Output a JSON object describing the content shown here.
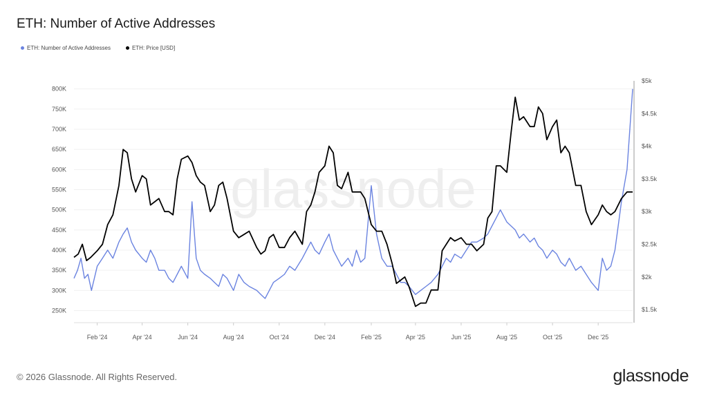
{
  "chart_data": {
    "type": "line",
    "title": "ETH: Number of Active Addresses",
    "watermark": "glassnode",
    "legend_position": "top-left",
    "grid": true,
    "x_tick_labels": [
      "Feb '24",
      "Apr '24",
      "Jun '24",
      "Aug '24",
      "Oct '24",
      "Dec '24",
      "Feb '25",
      "Apr '25",
      "Jun '25",
      "Aug '25",
      "Oct '25",
      "Dec '25"
    ],
    "x_tick_dates": [
      "2024-02-01",
      "2024-04-01",
      "2024-06-01",
      "2024-08-01",
      "2024-10-01",
      "2024-12-01",
      "2025-02-01",
      "2025-04-01",
      "2025-06-01",
      "2025-08-01",
      "2025-10-01",
      "2025-12-01"
    ],
    "xlim": [
      "2024-01-01",
      "2026-01-16"
    ],
    "left_axis": {
      "ticks": [
        250000,
        300000,
        350000,
        400000,
        450000,
        500000,
        550000,
        600000,
        650000,
        700000,
        750000,
        800000
      ],
      "tick_labels": [
        "250K",
        "300K",
        "350K",
        "400K",
        "450K",
        "500K",
        "550K",
        "600K",
        "650K",
        "700K",
        "750K",
        "800K"
      ],
      "ylim": [
        220000,
        820000
      ]
    },
    "right_axis": {
      "ticks": [
        1500,
        2000,
        2500,
        3000,
        3500,
        4000,
        4500,
        5000
      ],
      "tick_labels": [
        "$1.5k",
        "$2k",
        "$2.5k",
        "$3k",
        "$3.5k",
        "$4k",
        "$4.5k",
        "$5k"
      ],
      "ylim": [
        1300,
        5000
      ]
    },
    "series": [
      {
        "name": "ETH: Number of Active Addresses",
        "color": "#6a83e0",
        "axis": "left",
        "monthly": [
          [
            "2024-01",
            [
              330,
              350,
              380,
              330,
              340,
              300
            ]
          ],
          [
            "2024-02",
            [
              360,
              380,
              400,
              380
            ]
          ],
          [
            "2024-03",
            [
              420,
              440,
              455,
              420,
              400
            ]
          ],
          [
            "2024-04",
            [
              380,
              370,
              400,
              380,
              350
            ]
          ],
          [
            "2024-05",
            [
              350,
              330,
              320,
              340,
              360
            ]
          ],
          [
            "2024-06",
            [
              330,
              520,
              380,
              350,
              340
            ]
          ],
          [
            "2024-07",
            [
              330,
              320,
              310,
              340,
              330
            ]
          ],
          [
            "2024-08",
            [
              300,
              340,
              320,
              310
            ]
          ],
          [
            "2024-09",
            [
              300,
              290,
              280,
              300,
              320
            ]
          ],
          [
            "2024-10",
            [
              330,
              340,
              360,
              350
            ]
          ],
          [
            "2024-11",
            [
              380,
              400,
              420,
              400,
              390
            ]
          ],
          [
            "2024-12",
            [
              420,
              440,
              400,
              380,
              360
            ]
          ],
          [
            "2025-01",
            [
              380,
              360,
              400,
              370,
              380
            ]
          ],
          [
            "2025-02",
            [
              560,
              440,
              380,
              360
            ]
          ],
          [
            "2025-03",
            [
              360,
              340,
              320,
              320,
              310
            ]
          ],
          [
            "2025-04",
            [
              290,
              300,
              310,
              320
            ]
          ],
          [
            "2025-05",
            [
              340,
              360,
              380,
              370,
              390
            ]
          ],
          [
            "2025-06",
            [
              380,
              400,
              420,
              420
            ]
          ],
          [
            "2025-07",
            [
              430,
              440,
              460,
              480,
              500
            ]
          ],
          [
            "2025-08",
            [
              470,
              460,
              450,
              430,
              440
            ]
          ],
          [
            "2025-09",
            [
              420,
              430,
              410,
              400,
              380
            ]
          ],
          [
            "2025-10",
            [
              400,
              390,
              370,
              360,
              380
            ]
          ],
          [
            "2025-11",
            [
              350,
              360,
              340,
              320
            ]
          ],
          [
            "2025-12",
            [
              300,
              380,
              350,
              360,
              400
            ]
          ],
          [
            "2026-01",
            [
              520,
              600,
              800
            ]
          ]
        ]
      },
      {
        "name": "ETH: Price [USD]",
        "color": "#000000",
        "axis": "right",
        "monthly": [
          [
            "2024-01",
            [
              2300,
              2350,
              2500,
              2250,
              2300
            ]
          ],
          [
            "2024-02",
            [
              2400,
              2500,
              2800,
              2950
            ]
          ],
          [
            "2024-03",
            [
              3400,
              3950,
              3900,
              3500,
              3300
            ]
          ],
          [
            "2024-04",
            [
              3550,
              3500,
              3100,
              3150,
              3200
            ]
          ],
          [
            "2024-05",
            [
              3000,
              3000,
              2950,
              3500,
              3800
            ]
          ],
          [
            "2024-06",
            [
              3850,
              3750,
              3550,
              3450,
              3400
            ]
          ],
          [
            "2024-07",
            [
              3000,
              3100,
              3400,
              3450,
              3200
            ]
          ],
          [
            "2024-08",
            [
              2700,
              2600,
              2650,
              2700
            ]
          ],
          [
            "2024-09",
            [
              2450,
              2350,
              2400,
              2600,
              2650
            ]
          ],
          [
            "2024-10",
            [
              2450,
              2450,
              2600,
              2700
            ]
          ],
          [
            "2024-11",
            [
              2500,
              3000,
              3100,
              3300,
              3600
            ]
          ],
          [
            "2024-12",
            [
              3700,
              4000,
              3900,
              3400,
              3350
            ]
          ],
          [
            "2025-01",
            [
              3600,
              3300,
              3300,
              3300,
              3200
            ]
          ],
          [
            "2025-02",
            [
              2800,
              2700,
              2700,
              2500
            ]
          ],
          [
            "2025-03",
            [
              2200,
              1900,
              1950,
              2000,
              1850
            ]
          ],
          [
            "2025-04",
            [
              1550,
              1600,
              1600,
              1800
            ]
          ],
          [
            "2025-05",
            [
              1800,
              2400,
              2500,
              2600,
              2550
            ]
          ],
          [
            "2025-06",
            [
              2600,
              2500,
              2500,
              2400
            ]
          ],
          [
            "2025-07",
            [
              2500,
              2900,
              3000,
              3700,
              3700
            ]
          ],
          [
            "2025-08",
            [
              3600,
              4200,
              4750,
              4400,
              4450
            ]
          ],
          [
            "2025-09",
            [
              4300,
              4300,
              4600,
              4500,
              4100
            ]
          ],
          [
            "2025-10",
            [
              4300,
              4400,
              3900,
              4000,
              3900
            ]
          ],
          [
            "2025-11",
            [
              3400,
              3400,
              3000,
              2800
            ]
          ],
          [
            "2025-12",
            [
              2950,
              3100,
              3000,
              2950,
              3000
            ]
          ],
          [
            "2026-01",
            [
              3200,
              3300,
              3300
            ]
          ]
        ]
      }
    ]
  },
  "footer": {
    "copyright": "© 2026 Glassnode. All Rights Reserved.",
    "brand": "glassnode"
  }
}
